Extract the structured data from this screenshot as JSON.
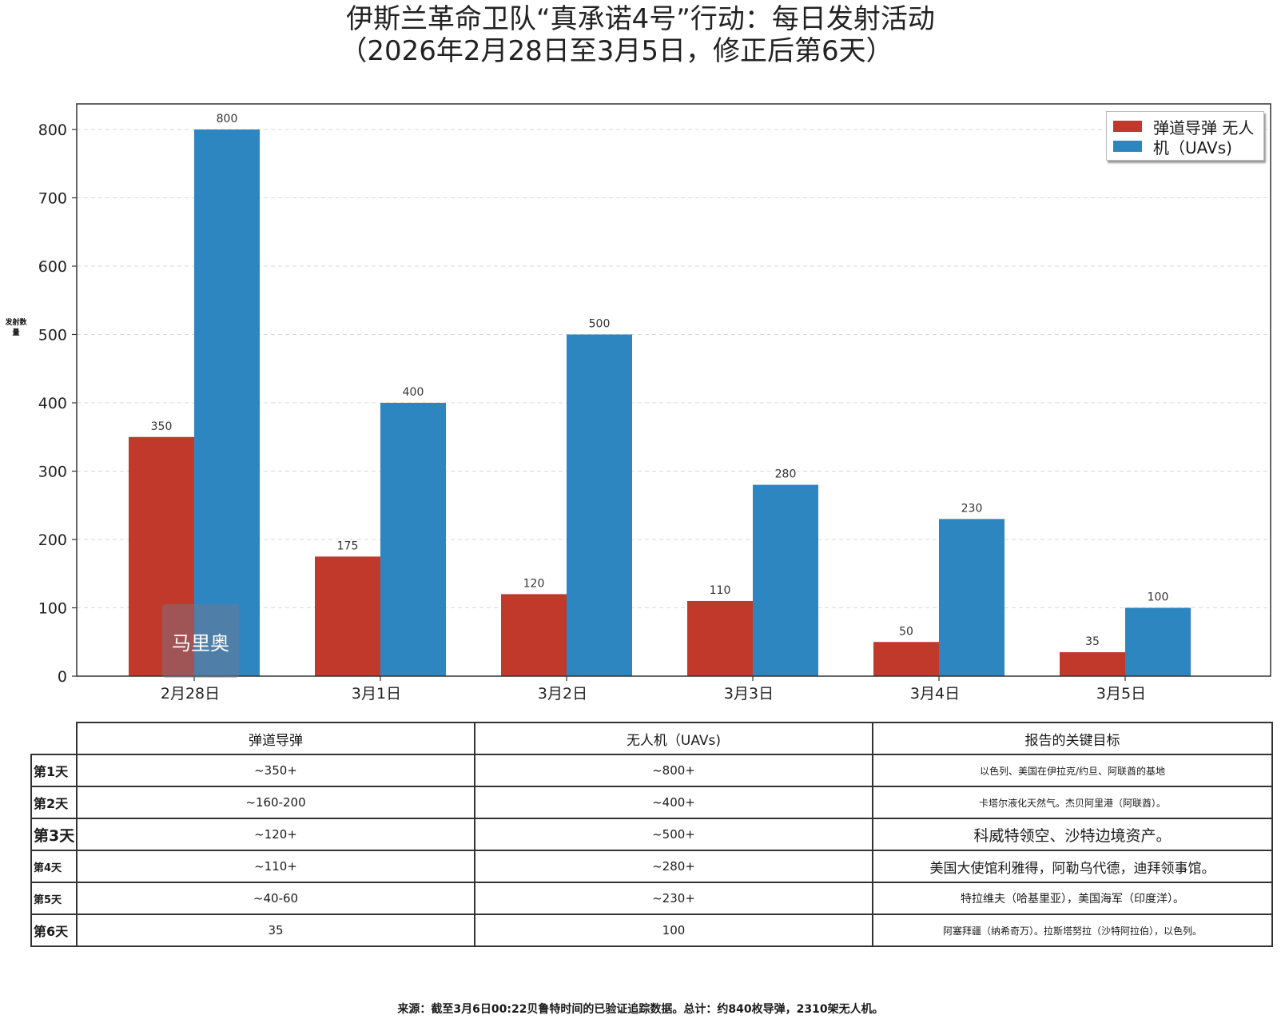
{
  "title_line1": "伊斯兰革命卫队“真承诺4号”行动：每日发射活动",
  "title_line2": "（2026年2月28日至3月5日，修正后第6天）",
  "ylabel": "发射数量",
  "watermark": "马里奥",
  "colors": {
    "ballistic": "#c0392b",
    "uav": "#2e86c1"
  },
  "chart_data": {
    "type": "bar",
    "categories": [
      "2月28日",
      "3月1日",
      "3月2日",
      "3月3日",
      "3月4日",
      "3月5日"
    ],
    "series": [
      {
        "name": "弹道导弹 无人",
        "values": [
          350,
          175,
          120,
          110,
          50,
          35
        ],
        "labels": [
          "350",
          "175",
          "120",
          "110",
          "50",
          "35"
        ]
      },
      {
        "name": "机（UAVs)",
        "values": [
          800,
          400,
          500,
          280,
          230,
          100
        ],
        "labels": [
          "800",
          "400",
          "500",
          "280",
          "230",
          "100"
        ]
      }
    ],
    "ylim": [
      0,
      840
    ],
    "yticks": [
      0,
      100,
      200,
      300,
      400,
      500,
      600,
      700,
      800
    ],
    "ytick_labels": [
      "0",
      "100",
      "200",
      "300",
      "400",
      "500",
      "600",
      "700",
      "800"
    ],
    "grid": "horizontal dashed",
    "legend_position": "top-right"
  },
  "table": {
    "headers": [
      "弹道导弹",
      "无人机（UAVs)",
      "报告的关键目标"
    ],
    "rows": [
      {
        "day": "第1天",
        "ballistic": "~350+",
        "uav": "~800+",
        "targets": "以色列、美国在伊拉克/约旦、阿联酋的基地"
      },
      {
        "day": "第2天",
        "ballistic": "~160-200",
        "uav": "~400+",
        "targets": "卡塔尔液化天然气。杰贝阿里港（阿联酋）。"
      },
      {
        "day": "第3天",
        "ballistic": "~120+",
        "uav": "~500+",
        "targets": "科威特领空、沙特边境资产。"
      },
      {
        "day": "第4天",
        "ballistic": "~110+",
        "uav": "~280+",
        "targets": "美国大使馆利雅得，阿勒乌代德，迪拜领事馆。"
      },
      {
        "day": "第5天",
        "ballistic": "~40-60",
        "uav": "~230+",
        "targets": "特拉维夫（哈基里亚），美国海军（印度洋）。"
      },
      {
        "day": "第6天",
        "ballistic": "35",
        "uav": "100",
        "targets": "阿塞拜疆（纳希奇万）。拉斯塔努拉（沙特阿拉伯），以色列。"
      }
    ]
  },
  "source": "来源：截至3月6日00:22贝鲁特时间的已验证追踪数据。总计：约840枚导弹，2310架无人机。"
}
